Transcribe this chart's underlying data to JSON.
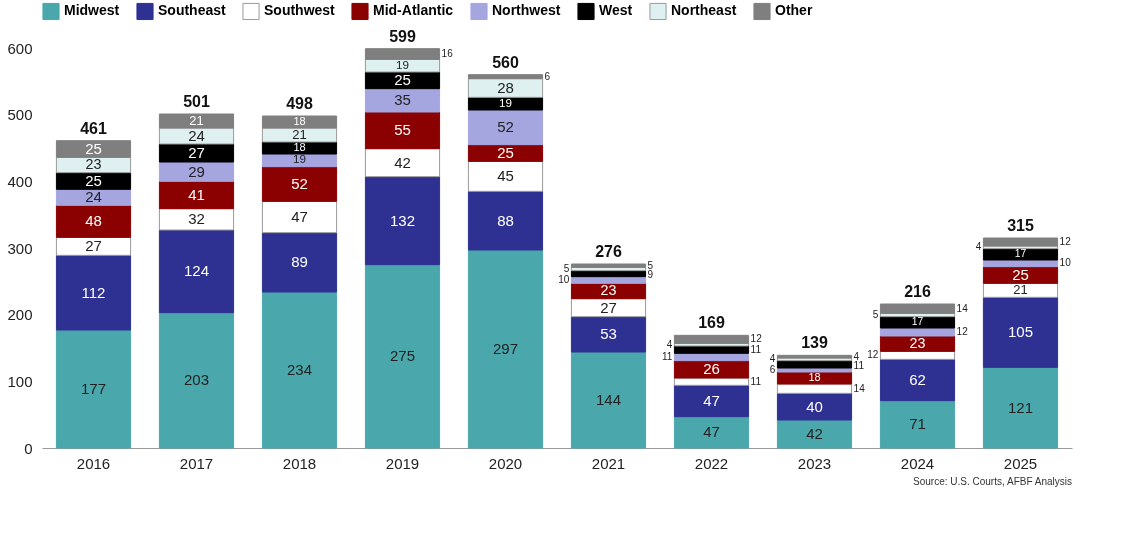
{
  "chart_data": {
    "type": "bar",
    "stacked": true,
    "data_labels": true,
    "legend": "top",
    "categories": [
      "2016",
      "2017",
      "2018",
      "2019",
      "2020",
      "2021",
      "2022",
      "2023",
      "2024",
      "2025"
    ],
    "series": [
      {
        "name": "Midwest",
        "color": "#4aa8ac",
        "values": [
          177,
          203,
          234,
          275,
          297,
          144,
          47,
          42,
          71,
          121
        ]
      },
      {
        "name": "Southeast",
        "color": "#2e3192",
        "values": [
          112,
          124,
          89,
          132,
          88,
          53,
          47,
          40,
          62,
          105
        ]
      },
      {
        "name": "Southwest",
        "color": "#ffffff",
        "values": [
          27,
          32,
          47,
          42,
          45,
          27,
          11,
          14,
          12,
          21
        ]
      },
      {
        "name": "Mid-Atlantic",
        "color": "#8b0000",
        "values": [
          48,
          41,
          52,
          55,
          25,
          23,
          26,
          18,
          23,
          25
        ]
      },
      {
        "name": "Northwest",
        "color": "#a5a5e0",
        "values": [
          24,
          29,
          19,
          35,
          52,
          10,
          11,
          6,
          12,
          10
        ]
      },
      {
        "name": "West",
        "color": "#000000",
        "values": [
          25,
          27,
          18,
          25,
          19,
          9,
          11,
          11,
          17,
          17
        ]
      },
      {
        "name": "Northeast",
        "color": "#dff0f0",
        "values": [
          23,
          24,
          21,
          19,
          28,
          5,
          4,
          4,
          5,
          4
        ]
      },
      {
        "name": "Other",
        "color": "#7f7f7f",
        "values": [
          25,
          21,
          18,
          16,
          6,
          5,
          12,
          4,
          14,
          12
        ]
      }
    ],
    "totals": [
      "461",
      "501",
      "498",
      "599",
      "560",
      "276",
      "169",
      "139",
      "216",
      "315"
    ],
    "ylim": [
      0,
      600
    ],
    "yticks": [
      0,
      100,
      200,
      300,
      400,
      500,
      600
    ],
    "annotations": [
      "Source: U.S. Courts, AFBF Analysis"
    ]
  }
}
